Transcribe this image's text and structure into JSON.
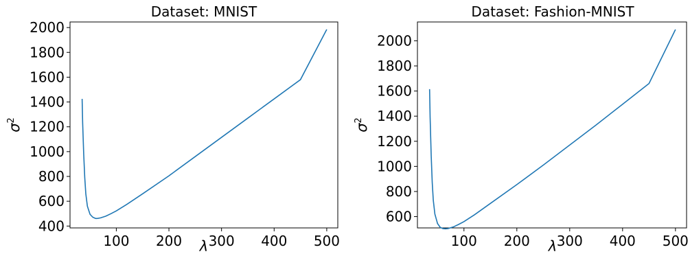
{
  "chart_data": [
    {
      "type": "line",
      "title": "Dataset: MNIST",
      "xlabel": "λ",
      "ylabel": "σ²",
      "xlim": [
        12,
        521
      ],
      "ylim": [
        385,
        2045
      ],
      "xticks": [
        100,
        200,
        300,
        400,
        500
      ],
      "yticks": [
        400,
        600,
        800,
        1000,
        1200,
        1400,
        1600,
        1800,
        2000
      ],
      "grid": false,
      "color": "#1f77b4",
      "series": [
        {
          "x": [
            35,
            36,
            38,
            40,
            42,
            45,
            50,
            55,
            60,
            62,
            65,
            70,
            80,
            90,
            100,
            120,
            150,
            200,
            250,
            300,
            350,
            400,
            450,
            500
          ],
          "y": [
            1425,
            1230,
            980,
            790,
            660,
            560,
            495,
            472,
            462,
            461,
            462,
            466,
            480,
            500,
            522,
            575,
            660,
            805,
            960,
            1115,
            1270,
            1425,
            1580,
            1985
          ]
        }
      ]
    },
    {
      "type": "line",
      "title": "Dataset: Fashion-MNIST",
      "xlabel": "λ",
      "ylabel": "σ²",
      "xlim": [
        12,
        521
      ],
      "ylim": [
        510,
        2150
      ],
      "xticks": [
        100,
        200,
        300,
        400,
        500
      ],
      "yticks": [
        600,
        800,
        1000,
        1200,
        1400,
        1600,
        1800,
        2000
      ],
      "grid": false,
      "color": "#1f77b4",
      "series": [
        {
          "x": [
            35,
            36,
            38,
            40,
            42,
            45,
            50,
            55,
            60,
            65,
            70,
            80,
            90,
            100,
            120,
            150,
            200,
            250,
            300,
            350,
            400,
            450,
            500
          ],
          "y": [
            1615,
            1390,
            1090,
            870,
            730,
            620,
            545,
            515,
            505,
            503,
            505,
            518,
            538,
            560,
            615,
            705,
            855,
            1010,
            1170,
            1330,
            1495,
            1660,
            2090
          ]
        }
      ]
    }
  ]
}
